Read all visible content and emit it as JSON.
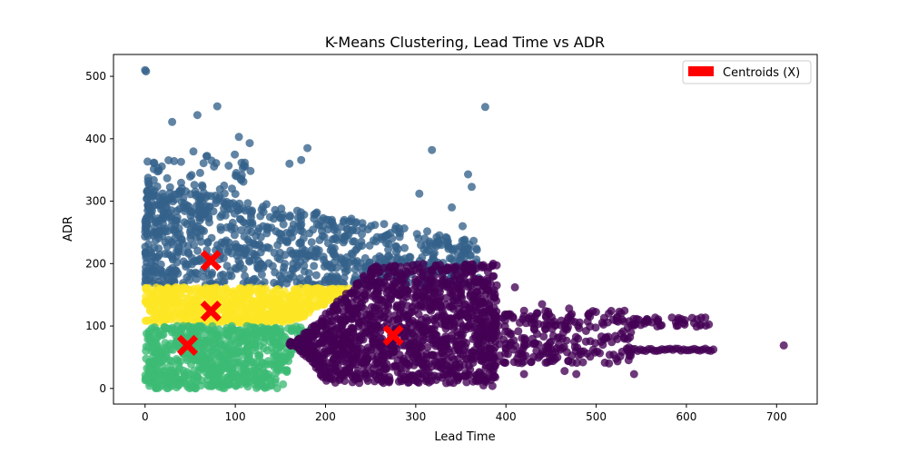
{
  "chart_data": {
    "type": "scatter",
    "title": "K-Means Clustering, Lead Time vs ADR",
    "xlabel": "Lead Time",
    "ylabel": "ADR",
    "xlim": [
      -35,
      745
    ],
    "ylim": [
      -25,
      535
    ],
    "xticks": [
      0,
      100,
      200,
      300,
      400,
      500,
      600,
      700
    ],
    "yticks": [
      0,
      100,
      200,
      300,
      400,
      500
    ],
    "grid": false,
    "legend": {
      "placement": "top-right",
      "label": "Centroids (X)",
      "color": "#ff0000"
    },
    "clusters": [
      {
        "color": "#35618b",
        "region": {
          "x": [
            0,
            370
          ],
          "y": [
            165,
            330
          ]
        }
      },
      {
        "color": "#fde725",
        "region": {
          "x": [
            0,
            230
          ],
          "y": [
            105,
            162
          ]
        }
      },
      {
        "color": "#3cbb75",
        "region": {
          "x": [
            0,
            180
          ],
          "y": [
            0,
            100
          ]
        }
      },
      {
        "color": "#440154",
        "region": {
          "x": [
            170,
            630
          ],
          "y": [
            0,
            200
          ]
        }
      }
    ],
    "centroids": [
      {
        "x": 73,
        "y": 205
      },
      {
        "x": 73,
        "y": 124
      },
      {
        "x": 47,
        "y": 69
      },
      {
        "x": 275,
        "y": 85
      }
    ],
    "outliers": [
      {
        "x": 0,
        "y": 510,
        "cluster": 0
      },
      {
        "x": 1,
        "y": 508,
        "cluster": 0
      },
      {
        "x": 30,
        "y": 427,
        "cluster": 0
      },
      {
        "x": 58,
        "y": 438,
        "cluster": 0
      },
      {
        "x": 80,
        "y": 452,
        "cluster": 0
      },
      {
        "x": 104,
        "y": 403,
        "cluster": 0
      },
      {
        "x": 116,
        "y": 393,
        "cluster": 0
      },
      {
        "x": 180,
        "y": 385,
        "cluster": 0
      },
      {
        "x": 173,
        "y": 366,
        "cluster": 0
      },
      {
        "x": 160,
        "y": 360,
        "cluster": 0
      },
      {
        "x": 318,
        "y": 382,
        "cluster": 0
      },
      {
        "x": 377,
        "y": 451,
        "cluster": 0
      },
      {
        "x": 358,
        "y": 343,
        "cluster": 0
      },
      {
        "x": 362,
        "y": 323,
        "cluster": 0
      },
      {
        "x": 304,
        "y": 312,
        "cluster": 0
      },
      {
        "x": 340,
        "y": 290,
        "cluster": 0
      },
      {
        "x": 352,
        "y": 260,
        "cluster": 0
      },
      {
        "x": 708,
        "y": 69,
        "cluster": 3
      },
      {
        "x": 542,
        "y": 101,
        "cluster": 3
      },
      {
        "x": 542,
        "y": 23,
        "cluster": 3
      },
      {
        "x": 478,
        "y": 23,
        "cluster": 3
      },
      {
        "x": 420,
        "y": 23,
        "cluster": 3
      },
      {
        "x": 465,
        "y": 28,
        "cluster": 3
      },
      {
        "x": 375,
        "y": 5,
        "cluster": 3
      },
      {
        "x": 385,
        "y": 4,
        "cluster": 3
      },
      {
        "x": 380,
        "y": 187,
        "cluster": 3
      },
      {
        "x": 410,
        "y": 162,
        "cluster": 3
      },
      {
        "x": 440,
        "y": 135,
        "cluster": 3
      },
      {
        "x": 470,
        "y": 128,
        "cluster": 3
      }
    ]
  }
}
